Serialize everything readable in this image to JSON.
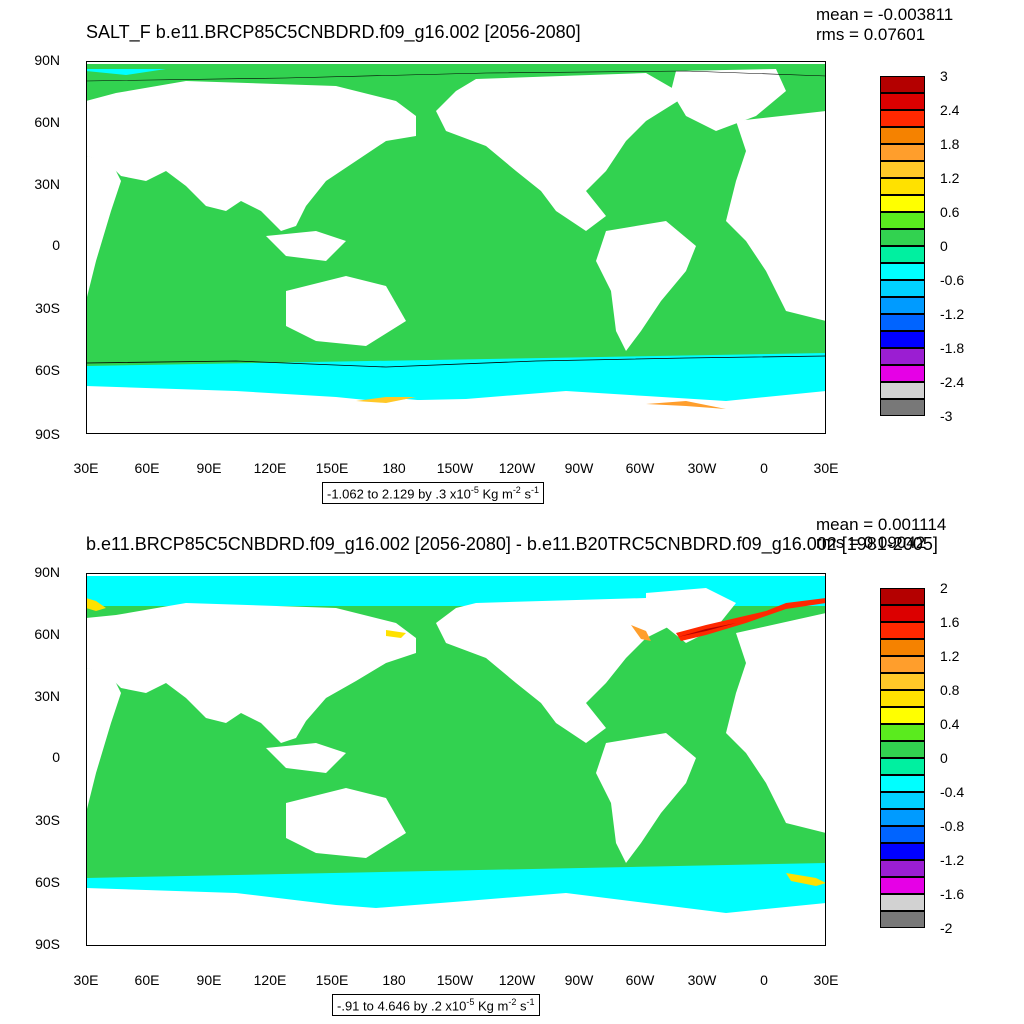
{
  "panels": [
    {
      "title": "SALT_F b.e11.BRCP85C5CNBDRD.f09_g16.002 [2056-2080]",
      "mean": "mean = -0.003811",
      "rms": "rms = 0.07601",
      "lat_labels": [
        "90N",
        "60N",
        "30N",
        "0",
        "30S",
        "60S",
        "90S"
      ],
      "lon_labels": [
        "30E",
        "60E",
        "90E",
        "120E",
        "150E",
        "180",
        "150W",
        "120W",
        "90W",
        "60W",
        "30W",
        "0",
        "30E"
      ],
      "info": {
        "range": "-1.062 to 2.129 by .3 x10",
        "exp": "-5",
        "unit": " Kg m",
        "unit_exp": "-2",
        "unit_s": " s",
        "unit_s_exp": "-1"
      },
      "colorbar_labels": [
        "3",
        "2.4",
        "1.8",
        "1.2",
        "0.6",
        "0",
        "-0.6",
        "-1.2",
        "-1.8",
        "-2.4",
        "-3"
      ],
      "colorbar_colors": [
        "#b40000",
        "#dc0000",
        "#ff2800",
        "#f58200",
        "#ff9e2c",
        "#ffc828",
        "#ffe100",
        "#ffff00",
        "#5aeb1e",
        "#32d250",
        "#00f0a0",
        "#00ffff",
        "#00d2ff",
        "#009bff",
        "#0064ff",
        "#0000ff",
        "#9b1ed2",
        "#e600e6",
        "#d2d2d2",
        "#787878"
      ]
    },
    {
      "title": "b.e11.BRCP85C5CNBDRD.f09_g16.002 [2056-2080] - b.e11.B20TRC5CNBDRD.f09_g16.002 [1981-2005]",
      "mean": "mean = 0.001114",
      "rms": "rms = 0.09042",
      "lat_labels": [
        "90N",
        "60N",
        "30N",
        "0",
        "30S",
        "60S",
        "90S"
      ],
      "lon_labels": [
        "30E",
        "60E",
        "90E",
        "120E",
        "150E",
        "180",
        "150W",
        "120W",
        "90W",
        "60W",
        "30W",
        "0",
        "30E"
      ],
      "info": {
        "range": "-.91 to 4.646 by .2 x10",
        "exp": "-5",
        "unit": " Kg m",
        "unit_exp": "-2",
        "unit_s": " s",
        "unit_s_exp": "-1"
      },
      "colorbar_labels": [
        "2",
        "1.6",
        "1.2",
        "0.8",
        "0.4",
        "0",
        "-0.4",
        "-0.8",
        "-1.2",
        "-1.6",
        "-2"
      ],
      "colorbar_colors": [
        "#b40000",
        "#dc0000",
        "#ff2800",
        "#f58200",
        "#ff9e2c",
        "#ffc828",
        "#ffe100",
        "#ffff00",
        "#5aeb1e",
        "#32d250",
        "#00f0a0",
        "#00ffff",
        "#00d2ff",
        "#009bff",
        "#0064ff",
        "#0000ff",
        "#9b1ed2",
        "#e600e6",
        "#d2d2d2",
        "#787878"
      ]
    }
  ],
  "colors": {
    "ocean": "#32d250",
    "sea_ice": "#00ffff",
    "land": "#ffffff"
  }
}
